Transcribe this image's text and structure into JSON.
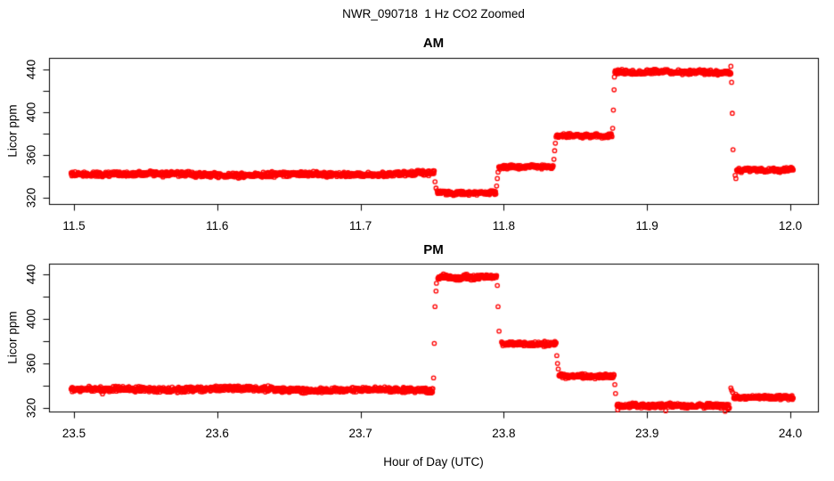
{
  "page": {
    "main_title": "NWR_090718  1 Hz CO2 Zoomed",
    "x_axis_label": "Hour of Day (UTC)",
    "background_color": "#FFFFFF",
    "axis_color": "#000000",
    "point_color": "#FF0000"
  },
  "chart_data": [
    {
      "type": "scatter",
      "panel": "AM",
      "title": "AM",
      "ylabel": "Licor ppm",
      "marker": "open-circle",
      "series_color": "#FF0000",
      "sample_rate_hz": 1,
      "xlim": [
        11.483,
        12.019
      ],
      "ylim": [
        315,
        450
      ],
      "xtick_values": [
        11.5,
        11.6,
        11.7,
        11.8,
        11.9,
        12.0
      ],
      "xtick_labels": [
        "11.5",
        "11.6",
        "11.7",
        "11.8",
        "11.9",
        "12.0"
      ],
      "ytick_values": [
        320,
        340,
        360,
        380,
        400,
        420,
        440
      ],
      "ytick_labels": [
        "320",
        "",
        "360",
        "",
        "400",
        "",
        "440"
      ],
      "grid": "off",
      "segments": [
        {
          "x_start": 11.498,
          "x_end": 11.7515,
          "level_ppm": 342.0,
          "noise_ppm": 1.9,
          "wiggle_ppm": 1.1
        },
        {
          "x_start": 11.7535,
          "x_end": 11.7945,
          "level_ppm": 324.5,
          "noise_ppm": 1.7,
          "wiggle_ppm": 0.5
        },
        {
          "x_start": 11.7965,
          "x_end": 11.8345,
          "level_ppm": 349.0,
          "noise_ppm": 1.6,
          "wiggle_ppm": 0.5
        },
        {
          "x_start": 11.8365,
          "x_end": 11.8755,
          "level_ppm": 378.0,
          "noise_ppm": 1.6,
          "wiggle_ppm": 0.5
        },
        {
          "x_start": 11.8775,
          "x_end": 11.9585,
          "level_ppm": 437.5,
          "noise_ppm": 1.8,
          "wiggle_ppm": 0.8
        },
        {
          "x_start": 11.9625,
          "x_end": 12.002,
          "level_ppm": 346.0,
          "noise_ppm": 1.7,
          "wiggle_ppm": 0.5
        }
      ],
      "transition_points": [
        {
          "x": 11.752,
          "y": 335
        },
        {
          "x": 11.7527,
          "y": 329
        },
        {
          "x": 11.795,
          "y": 331
        },
        {
          "x": 11.7955,
          "y": 338
        },
        {
          "x": 11.796,
          "y": 344
        },
        {
          "x": 11.835,
          "y": 356
        },
        {
          "x": 11.8355,
          "y": 364
        },
        {
          "x": 11.836,
          "y": 371
        },
        {
          "x": 11.876,
          "y": 385
        },
        {
          "x": 11.8765,
          "y": 402
        },
        {
          "x": 11.877,
          "y": 421
        },
        {
          "x": 11.8772,
          "y": 433
        },
        {
          "x": 11.9585,
          "y": 443
        },
        {
          "x": 11.959,
          "y": 428
        },
        {
          "x": 11.9595,
          "y": 399
        },
        {
          "x": 11.96,
          "y": 365
        },
        {
          "x": 11.9615,
          "y": 341
        },
        {
          "x": 11.962,
          "y": 338
        }
      ]
    },
    {
      "type": "scatter",
      "panel": "PM",
      "title": "PM",
      "ylabel": "Licor ppm",
      "marker": "open-circle",
      "series_color": "#FF0000",
      "sample_rate_hz": 1,
      "xlim": [
        23.483,
        24.019
      ],
      "ylim": [
        314,
        449
      ],
      "xtick_values": [
        23.5,
        23.6,
        23.7,
        23.8,
        23.9,
        24.0
      ],
      "xtick_labels": [
        "23.5",
        "23.6",
        "23.7",
        "23.8",
        "23.9",
        "24.0"
      ],
      "ytick_values": [
        320,
        340,
        360,
        380,
        400,
        420,
        440
      ],
      "ytick_labels": [
        "320",
        "",
        "360",
        "",
        "400",
        "",
        "440"
      ],
      "grid": "off",
      "segments": [
        {
          "x_start": 23.498,
          "x_end": 23.7505,
          "level_ppm": 336.5,
          "noise_ppm": 1.9,
          "wiggle_ppm": 1.0
        },
        {
          "x_start": 23.754,
          "x_end": 23.795,
          "level_ppm": 437.5,
          "noise_ppm": 1.8,
          "wiggle_ppm": 0.7
        },
        {
          "x_start": 23.7985,
          "x_end": 23.8365,
          "level_ppm": 377.5,
          "noise_ppm": 1.7,
          "wiggle_ppm": 0.5
        },
        {
          "x_start": 23.8385,
          "x_end": 23.877,
          "level_ppm": 348.5,
          "noise_ppm": 1.6,
          "wiggle_ppm": 0.5
        },
        {
          "x_start": 23.879,
          "x_end": 23.9575,
          "level_ppm": 322.0,
          "noise_ppm": 1.7,
          "wiggle_ppm": 0.6
        },
        {
          "x_start": 23.9605,
          "x_end": 24.002,
          "level_ppm": 329.5,
          "noise_ppm": 1.6,
          "wiggle_ppm": 0.4
        }
      ],
      "transition_points": [
        {
          "x": 23.751,
          "y": 347
        },
        {
          "x": 23.7515,
          "y": 378
        },
        {
          "x": 23.752,
          "y": 411
        },
        {
          "x": 23.7527,
          "y": 425
        },
        {
          "x": 23.753,
          "y": 432
        },
        {
          "x": 23.7955,
          "y": 430
        },
        {
          "x": 23.796,
          "y": 411
        },
        {
          "x": 23.7967,
          "y": 389
        },
        {
          "x": 23.837,
          "y": 367
        },
        {
          "x": 23.8375,
          "y": 360
        },
        {
          "x": 23.838,
          "y": 355
        },
        {
          "x": 23.8775,
          "y": 341
        },
        {
          "x": 23.878,
          "y": 333
        },
        {
          "x": 23.8795,
          "y": 318.5
        },
        {
          "x": 23.913,
          "y": 317.5
        },
        {
          "x": 23.9545,
          "y": 317
        },
        {
          "x": 23.9585,
          "y": 338
        },
        {
          "x": 23.959,
          "y": 336
        },
        {
          "x": 23.9597,
          "y": 334
        }
      ]
    }
  ]
}
